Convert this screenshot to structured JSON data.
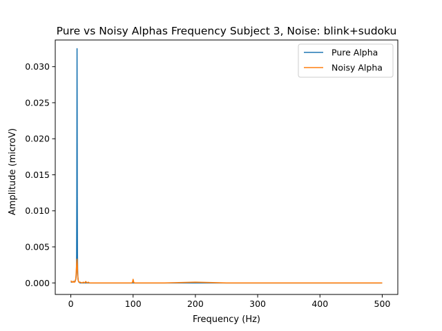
{
  "chart_data": {
    "type": "line",
    "title": "Pure vs Noisy Alphas Frequency Subject 3, Noise: blink+sudoku",
    "xlabel": "Frequency (Hz)",
    "ylabel": "Amplitude (microV)",
    "xlim": [
      -25,
      525
    ],
    "ylim": [
      -0.0016,
      0.0337
    ],
    "xticks": [
      0,
      100,
      200,
      300,
      400,
      500
    ],
    "yticks": [
      0.0,
      0.005,
      0.01,
      0.015,
      0.02,
      0.025,
      0.03
    ],
    "xtick_labels": [
      "0",
      "100",
      "200",
      "300",
      "400",
      "500"
    ],
    "ytick_labels": [
      "0.000",
      "0.005",
      "0.010",
      "0.015",
      "0.020",
      "0.025",
      "0.030"
    ],
    "grid": false,
    "legend_position": "top-right",
    "series": [
      {
        "name": "Pure Alpha",
        "color": "#1f77b4",
        "x": [
          0,
          2,
          4,
          6,
          7,
          8,
          8.5,
          9,
          9.3,
          9.6,
          9.8,
          10,
          10.2,
          10.4,
          10.7,
          11,
          11.5,
          12,
          13,
          15,
          20,
          30,
          50,
          100,
          150,
          200,
          300,
          400,
          500
        ],
        "y": [
          0.0001,
          0.0001,
          0.0002,
          0.0002,
          0.0003,
          0.0005,
          0.0008,
          0.0015,
          0.004,
          0.012,
          0.022,
          0.0325,
          0.025,
          0.012,
          0.004,
          0.0015,
          0.0006,
          0.0003,
          0.0001,
          0.0,
          0.0,
          0.0,
          0.0,
          0.0,
          0.0,
          0.0,
          0.0,
          0.0,
          0.0
        ]
      },
      {
        "name": "Noisy Alpha",
        "color": "#ff7f0e",
        "x": [
          0,
          1,
          2,
          3,
          4,
          5,
          6,
          7,
          8,
          8.5,
          9,
          9.5,
          10,
          10.5,
          11,
          11.5,
          12,
          13,
          15,
          18,
          20,
          22,
          24,
          25,
          26,
          28,
          30,
          40,
          50,
          60,
          70,
          80,
          90,
          98,
          99,
          100,
          101,
          102,
          110,
          150,
          200,
          250,
          300,
          400,
          500
        ],
        "y": [
          0.0003,
          0.0002,
          0.0001,
          0.0002,
          0.0001,
          0.0002,
          0.0001,
          0.0002,
          0.0006,
          0.0012,
          0.002,
          0.0028,
          0.0033,
          0.0025,
          0.0012,
          0.0006,
          0.0003,
          0.0001,
          0.0001,
          0.0,
          0.0001,
          0.0,
          0.0002,
          0.0001,
          0.0,
          0.0001,
          0.0,
          0.0,
          0.0,
          0.0,
          0.0,
          0.0,
          0.0,
          0.0,
          0.0001,
          0.0005,
          0.0001,
          0.0,
          0.0,
          0.0,
          0.0001,
          0.0,
          0.0,
          0.0,
          0.0
        ]
      }
    ]
  }
}
